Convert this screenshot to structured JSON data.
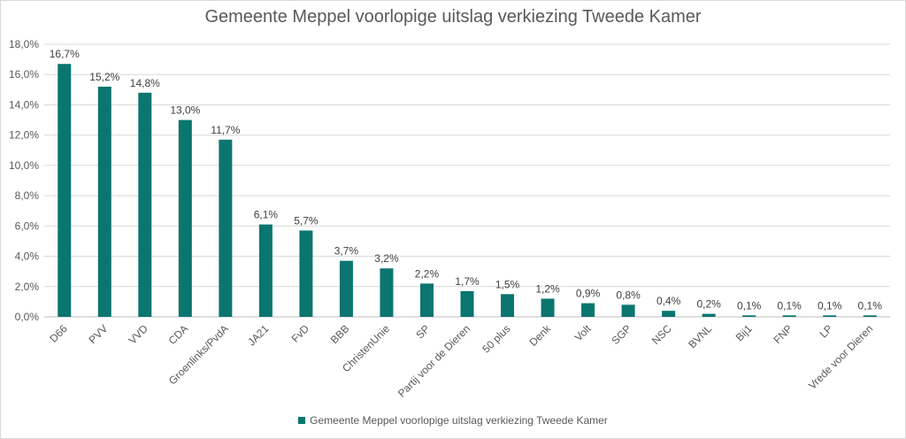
{
  "chart_data": {
    "type": "bar",
    "title": "Gemeente Meppel voorlopige uitslag verkiezing Tweede Kamer",
    "xlabel": "",
    "ylabel": "",
    "ylim": [
      0,
      18
    ],
    "y_ticks": [
      "0,0%",
      "2,0%",
      "4,0%",
      "6,0%",
      "8,0%",
      "10,0%",
      "12,0%",
      "14,0%",
      "16,0%",
      "18,0%"
    ],
    "categories": [
      "D66",
      "PVV",
      "VVD",
      "CDA",
      "Groenlinks/PvdA",
      "JA21",
      "FvD",
      "BBB",
      "ChristenUnie",
      "SP",
      "Partij voor de Dieren",
      "50 plus",
      "Denk",
      "Volt",
      "SGP",
      "NSC",
      "BVNL",
      "Bij1",
      "FNP",
      "LP",
      "Vrede voor Dieren"
    ],
    "series": [
      {
        "name": "Gemeente Meppel voorlopige uitslag verkiezing Tweede Kamer",
        "values": [
          16.7,
          15.2,
          14.8,
          13.0,
          11.7,
          6.1,
          5.7,
          3.7,
          3.2,
          2.2,
          1.7,
          1.5,
          1.2,
          0.9,
          0.8,
          0.4,
          0.2,
          0.1,
          0.1,
          0.1,
          0.1
        ],
        "labels": [
          "16,7%",
          "15,2%",
          "14,8%",
          "13,0%",
          "11,7%",
          "6,1%",
          "5,7%",
          "3,7%",
          "3,2%",
          "2,2%",
          "1,7%",
          "1,5%",
          "1,2%",
          "0,9%",
          "0,8%",
          "0,4%",
          "0,2%",
          "0,1%",
          "0,1%",
          "0,1%",
          "0,1%"
        ]
      }
    ],
    "grid": true,
    "legend_position": "bottom",
    "bar_color": "#0b7570"
  }
}
